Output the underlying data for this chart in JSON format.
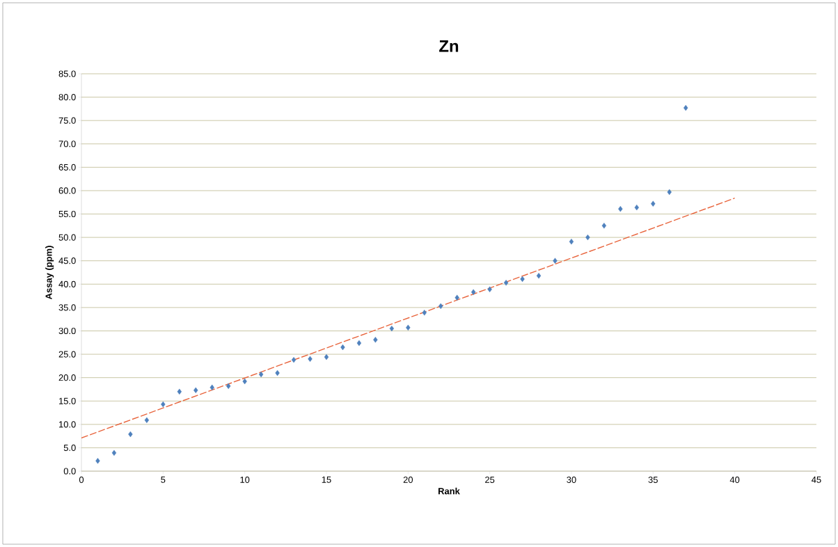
{
  "chart_data": {
    "type": "scatter",
    "title": "Zn",
    "xlabel": "Rank",
    "ylabel": "Assay (ppm)",
    "xlim": [
      0,
      45
    ],
    "xticks": [
      0,
      5,
      10,
      15,
      20,
      25,
      30,
      35,
      40,
      45
    ],
    "ylim": [
      0,
      85
    ],
    "yticks": [
      {
        "value": 0,
        "label": "0.0"
      },
      {
        "value": 5,
        "label": "5.0"
      },
      {
        "value": 10,
        "label": "10.0"
      },
      {
        "value": 15,
        "label": "15.0"
      },
      {
        "value": 20,
        "label": "20.0"
      },
      {
        "value": 25,
        "label": "25.0"
      },
      {
        "value": 30,
        "label": "30.0"
      },
      {
        "value": 35,
        "label": "35.0"
      },
      {
        "value": 40,
        "label": "40.0"
      },
      {
        "value": 45,
        "label": "45.0"
      },
      {
        "value": 50,
        "label": "50.0"
      },
      {
        "value": 55,
        "label": "55.0"
      },
      {
        "value": 60,
        "label": "60.0"
      },
      {
        "value": 65,
        "label": "65.0"
      },
      {
        "value": 70,
        "label": "70.0"
      },
      {
        "value": 75,
        "label": "75.0"
      },
      {
        "value": 80,
        "label": "80.0"
      },
      {
        "value": 85,
        "label": "85.0"
      }
    ],
    "grid": "y",
    "series": [
      {
        "color": "#4f81bd",
        "marker": "diamond",
        "x": [
          1,
          2,
          3,
          4,
          5,
          6,
          7,
          8,
          9,
          10,
          11,
          12,
          13,
          14,
          15,
          16,
          17,
          18,
          19,
          20,
          21,
          22,
          23,
          24,
          25,
          26,
          27,
          28,
          29,
          30,
          31,
          32,
          33,
          34,
          35,
          36,
          37
        ],
        "values": [
          2.2,
          3.9,
          7.9,
          10.9,
          14.3,
          17.0,
          17.3,
          17.9,
          18.2,
          19.2,
          20.7,
          21.0,
          23.8,
          24.0,
          24.4,
          26.5,
          27.4,
          28.1,
          30.5,
          30.7,
          33.9,
          35.3,
          37.1,
          38.3,
          38.9,
          40.3,
          41.1,
          41.8,
          45.0,
          49.1,
          50.0,
          52.5,
          56.1,
          56.4,
          57.2,
          59.7,
          77.7
        ]
      },
      {
        "type": "line",
        "color": "#e8643c",
        "marker": "none",
        "line_style": "dashed",
        "x": [
          0,
          40
        ],
        "values": [
          7.1,
          58.4
        ]
      }
    ]
  }
}
